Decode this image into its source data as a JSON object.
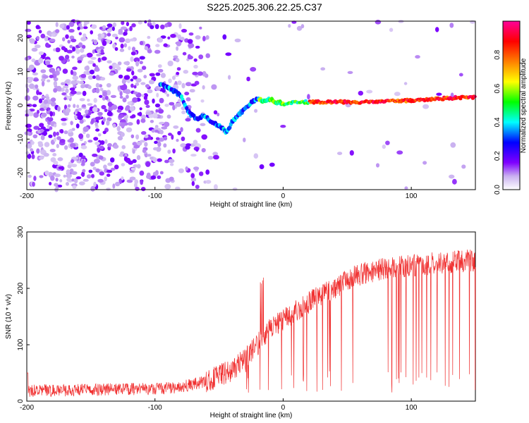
{
  "title": "S225.2025.306.22.25.C37",
  "chart_data": [
    {
      "type": "heatmap",
      "xlabel": "Height of straight line (km)",
      "ylabel": "Frequency (Hz)",
      "xlim": [
        -200,
        150
      ],
      "ylim": [
        -25,
        25
      ],
      "xticks": [
        -200,
        -100,
        0,
        100
      ],
      "yticks": [
        -20,
        -10,
        0,
        10,
        20
      ],
      "colorbar": {
        "label": "Normalized spectral amplitude",
        "range": [
          0,
          1
        ],
        "ticks": [
          0.0,
          0.2,
          0.4,
          0.6,
          0.8
        ],
        "colors": [
          "#ffffff",
          "#c9b0f0",
          "#7f00ff",
          "#0000ff",
          "#00ffff",
          "#00ff00",
          "#ffff00",
          "#ff7f00",
          "#ff0000",
          "#ff00aa"
        ]
      },
      "ridge": {
        "x": [
          -95,
          -88,
          -80,
          -74,
          -68,
          -62,
          -56,
          -50,
          -44,
          -40,
          -35,
          -30,
          -25,
          -20,
          -15,
          -10,
          -5,
          0,
          10,
          20,
          40,
          60,
          80,
          100,
          120,
          150
        ],
        "y": [
          6,
          5,
          3,
          -2,
          -4,
          -3,
          -5,
          -6,
          -8,
          -5,
          -3,
          -1,
          1,
          2,
          1,
          2,
          1,
          0.5,
          1,
          1,
          1,
          1,
          1.2,
          1.5,
          2,
          2.5
        ]
      }
    },
    {
      "type": "line",
      "xlabel": "Height of straight line (km)",
      "ylabel": "SNR (10 * v/v)",
      "xlim": [
        -200,
        150
      ],
      "ylim": [
        0,
        300
      ],
      "xticks": [
        -200,
        -100,
        0,
        100
      ],
      "yticks": [
        0,
        100,
        200,
        300
      ],
      "color": "#f03030",
      "envelope": {
        "x": [
          -200,
          -150,
          -100,
          -80,
          -60,
          -40,
          -30,
          -20,
          -10,
          0,
          10,
          20,
          30,
          40,
          50,
          60,
          80,
          100,
          120,
          150
        ],
        "y": [
          18,
          20,
          22,
          25,
          35,
          55,
          75,
          100,
          130,
          145,
          160,
          175,
          190,
          200,
          215,
          225,
          235,
          240,
          245,
          250
        ]
      }
    }
  ]
}
